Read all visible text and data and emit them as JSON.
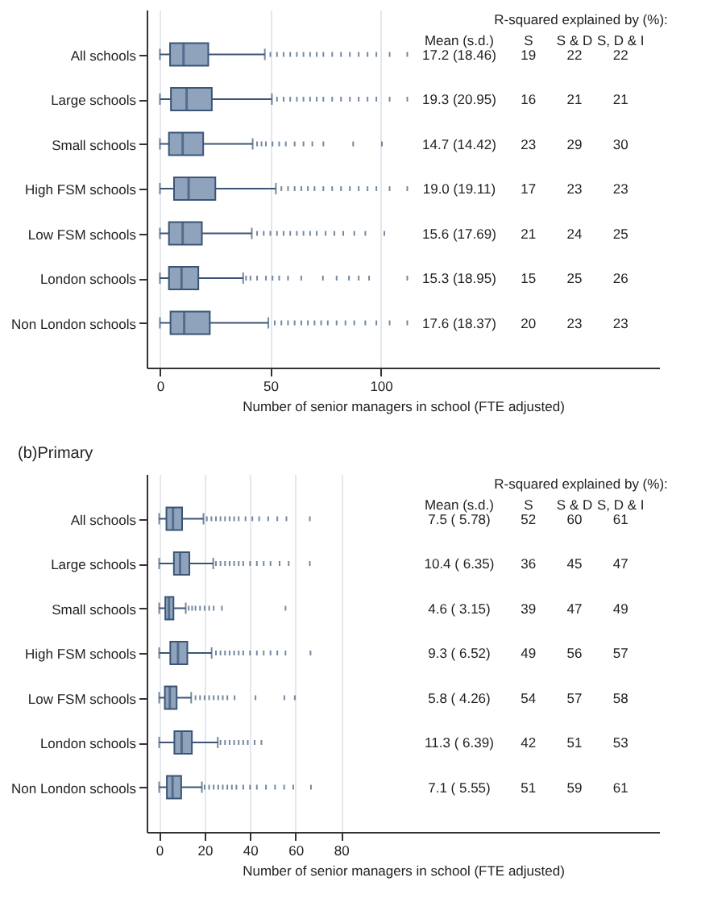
{
  "chart_data": [
    {
      "type": "box",
      "orientation": "horizontal",
      "color": "#8fa3bd",
      "grid": "x",
      "xlabel": "Number of senior managers in school (FTE adjusted)",
      "xlim": [
        -6,
        226
      ],
      "xticks": [
        0,
        50,
        100
      ],
      "categories": [
        "All schools",
        "Large schools",
        "Small schools",
        "High FSM schools",
        "Low FSM schools",
        "London schools",
        "Non London schools"
      ],
      "boxes": [
        {
          "low": 0,
          "q1": 4.6,
          "median": 10.7,
          "q3": 21.9,
          "high": 47.5,
          "outliers": [
            50,
            53,
            56,
            59,
            62,
            65,
            68,
            71,
            74,
            78,
            82,
            86,
            90,
            94,
            98,
            104,
            112
          ]
        },
        {
          "low": 0,
          "q1": 5,
          "median": 12.1,
          "q3": 23.5,
          "high": 50.7,
          "outliers": [
            53,
            56,
            59,
            62,
            65,
            68,
            71,
            74,
            78,
            82,
            86,
            90,
            94,
            98,
            104,
            112
          ]
        },
        {
          "low": 0,
          "q1": 4.1,
          "median": 10.3,
          "q3": 19.6,
          "high": 42,
          "outliers": [
            44,
            46,
            48,
            51,
            54,
            57,
            61,
            65,
            69,
            74,
            87.5,
            100.5
          ]
        },
        {
          "low": 0,
          "q1": 6.4,
          "median": 13,
          "q3": 25.1,
          "high": 52.5,
          "outliers": [
            55,
            58,
            61,
            64,
            67,
            70,
            74,
            78,
            82,
            86,
            90,
            94,
            98,
            104,
            112
          ]
        },
        {
          "low": 0,
          "q1": 4.1,
          "median": 10.3,
          "q3": 19,
          "high": 41.6,
          "outliers": [
            44,
            47,
            50,
            53,
            56,
            59,
            62,
            65,
            68,
            71,
            75,
            79,
            83,
            88,
            93,
            101.6
          ]
        },
        {
          "low": 0,
          "q1": 4.1,
          "median": 9.8,
          "q3": 17.4,
          "high": 37.7,
          "outliers": [
            39,
            41,
            44,
            48,
            51,
            54,
            58,
            64,
            73.8,
            80,
            85.6,
            90,
            94.7,
            112
          ]
        },
        {
          "low": 0,
          "q1": 4.8,
          "median": 11,
          "q3": 22.6,
          "high": 49.1,
          "outliers": [
            52,
            55,
            58,
            61,
            64,
            67,
            70,
            73,
            76,
            80,
            84,
            88,
            93,
            98,
            104,
            112
          ]
        }
      ],
      "annotations": [
        "R-squared explained by (%):",
        "Mean (s.d.)",
        "S",
        "S & D",
        "S, D & I",
        "17.2 (18.46)",
        "19",
        "22",
        "22",
        "19.3 (20.95)",
        "16",
        "21",
        "21",
        "14.7 (14.42)",
        "23",
        "29",
        "30",
        "19.0 (19.11)",
        "17",
        "23",
        "23",
        "15.6 (17.69)",
        "21",
        "24",
        "25",
        "15.3 (18.95)",
        "15",
        "25",
        "26",
        "17.6 (18.37)",
        "20",
        "23",
        "23"
      ]
    },
    {
      "type": "box",
      "orientation": "horizontal",
      "title": "(b)Primary",
      "color": "#8fa3bd",
      "grid": "x",
      "xlabel": "Number of senior managers in school (FTE adjusted)",
      "xlim": [
        -5.5,
        220
      ],
      "xticks": [
        0,
        20,
        40,
        60,
        80
      ],
      "categories": [
        "All schools",
        "Large schools",
        "Small schools",
        "High FSM schools",
        "Low FSM schools",
        "London schools",
        "Non London schools"
      ],
      "boxes": [
        {
          "low": 0,
          "q1": 3.2,
          "median": 6.1,
          "q3": 10.1,
          "high": 19.5,
          "outliers": [
            21,
            23,
            25,
            27,
            29,
            31,
            33,
            35,
            38,
            41,
            44,
            48,
            52,
            56,
            66.3
          ]
        },
        {
          "low": 0,
          "q1": 6.5,
          "median": 9.2,
          "q3": 13.3,
          "high": 23.8,
          "outliers": [
            25,
            27,
            29,
            31,
            33,
            35,
            37,
            40,
            43,
            46,
            49,
            53,
            57,
            66.3
          ]
        },
        {
          "low": 0,
          "q1": 2.7,
          "median": 4.3,
          "q3": 6.3,
          "high": 11.7,
          "outliers": [
            13,
            14.5,
            16,
            18,
            20,
            22,
            24,
            27.6,
            55.6
          ]
        },
        {
          "low": 0,
          "q1": 4.9,
          "median": 8.3,
          "q3": 12.4,
          "high": 23.1,
          "outliers": [
            25,
            27,
            29,
            31,
            33,
            35,
            37,
            40,
            43,
            46,
            49,
            52,
            55.6,
            66.6
          ]
        },
        {
          "low": 0,
          "q1": 2.5,
          "median": 4.7,
          "q3": 7.7,
          "high": 14.1,
          "outliers": [
            16,
            18,
            20,
            22,
            24,
            26,
            28,
            30,
            33.2,
            42.4,
            55.1,
            59.7
          ]
        },
        {
          "low": 0,
          "q1": 6.7,
          "median": 9.9,
          "q3": 14.4,
          "high": 25.8,
          "outliers": [
            27,
            29,
            31,
            33,
            35,
            37,
            39,
            42,
            45
          ]
        },
        {
          "low": 0,
          "q1": 3.4,
          "median": 5.9,
          "q3": 9.7,
          "high": 18.8,
          "outliers": [
            20,
            22,
            24,
            26,
            28,
            30,
            32,
            34,
            37,
            40,
            43,
            47,
            51,
            55,
            59,
            66.8
          ]
        }
      ],
      "annotations": [
        "R-squared explained by (%):",
        "Mean (s.d.)",
        "S",
        "S & D",
        "S, D & I",
        "7.5 ( 5.78)",
        "52",
        "60",
        "61",
        "10.4 ( 6.35)",
        "36",
        "45",
        "47",
        "4.6 ( 3.15)",
        "39",
        "47",
        "49",
        "9.3 ( 6.52)",
        "49",
        "56",
        "57",
        "5.8 ( 4.26)",
        "54",
        "57",
        "58",
        "11.3 ( 6.39)",
        "42",
        "51",
        "53",
        "7.1 ( 5.55)",
        "51",
        "59",
        "61"
      ]
    }
  ]
}
